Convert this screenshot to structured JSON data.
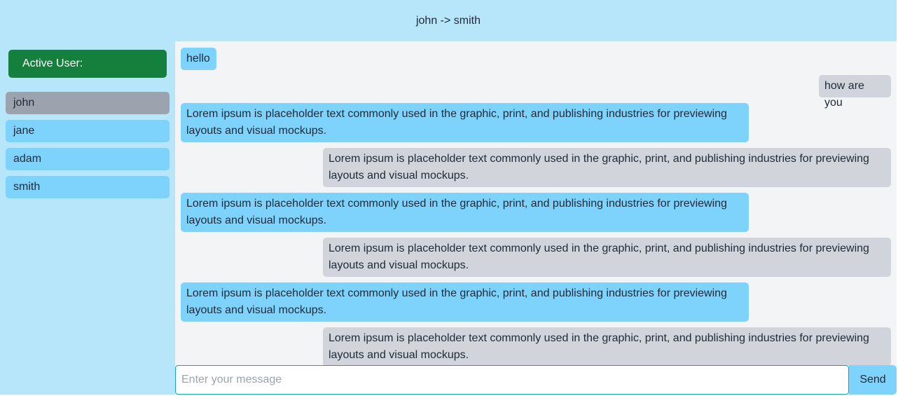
{
  "header": {
    "title": "john -> smith"
  },
  "sidebar": {
    "active_user_label": "Active User:",
    "users": [
      {
        "name": "john",
        "selected": true
      },
      {
        "name": "jane",
        "selected": false
      },
      {
        "name": "adam",
        "selected": false
      },
      {
        "name": "smith",
        "selected": false
      }
    ]
  },
  "messages": [
    {
      "direction": "sent",
      "text": "hello"
    },
    {
      "direction": "received",
      "text": "how are you"
    },
    {
      "direction": "sent",
      "text": "Lorem ipsum is placeholder text commonly used in the graphic, print, and publishing industries for previewing layouts and visual mockups."
    },
    {
      "direction": "received",
      "text": "Lorem ipsum is placeholder text commonly used in the graphic, print, and publishing industries for previewing layouts and visual mockups."
    },
    {
      "direction": "sent",
      "text": "Lorem ipsum is placeholder text commonly used in the graphic, print, and publishing industries for previewing layouts and visual mockups."
    },
    {
      "direction": "received",
      "text": "Lorem ipsum is placeholder text commonly used in the graphic, print, and publishing industries for previewing layouts and visual mockups."
    },
    {
      "direction": "sent",
      "text": "Lorem ipsum is placeholder text commonly used in the graphic, print, and publishing industries for previewing layouts and visual mockups."
    },
    {
      "direction": "received",
      "text": "Lorem ipsum is placeholder text commonly used in the graphic, print, and publishing industries for previewing layouts and visual mockups."
    }
  ],
  "composer": {
    "placeholder": "Enter your message",
    "value": "",
    "send_label": "Send"
  },
  "colors": {
    "header_bg": "#b7e6fb",
    "active_user_bg": "#15803d",
    "sent_bubble": "#7dd3fc",
    "received_bubble": "#d1d5db",
    "selected_user": "#9ca3af",
    "chat_bg": "#f3f4f6"
  }
}
